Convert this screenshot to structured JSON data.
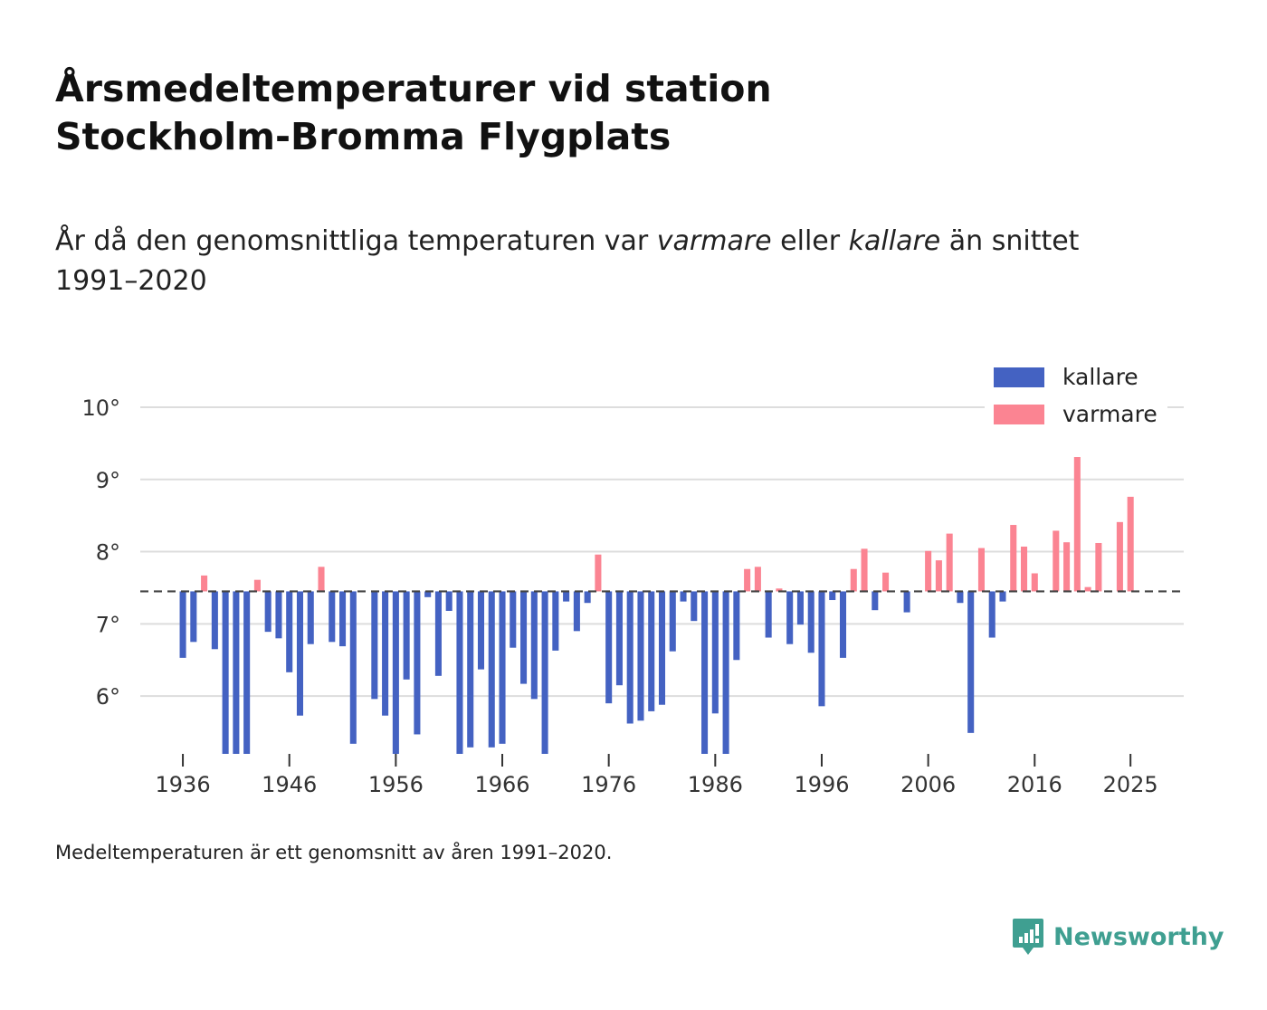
{
  "title": {
    "line1": "Årsmedeltemperaturer vid station",
    "line2": "Stockholm-Bromma Flygplats"
  },
  "subtitle": {
    "part1": "År då den genomsnittliga temperaturen var ",
    "warm_word": "varmare",
    "part2": " eller ",
    "cold_word": "kallare",
    "part3": " än snittet 1991–2020"
  },
  "footnote": "Medeltemperaturen är ett genomsnitt av åren 1991–2020.",
  "brand": {
    "name": "Newsworthy",
    "icon": "newsworthy-logo-icon"
  },
  "colors": {
    "cold": "#4462c2",
    "warm": "#fb8492",
    "gridline": "#dddddd",
    "reference": "#444444",
    "axis_text": "#333333",
    "brand": "#3f9f91"
  },
  "chart_data": {
    "type": "bar",
    "title": "Årsmedeltemperaturer vid station Stockholm-Bromma Flygplats",
    "baseline": 7.45,
    "baseline_label": "snittet 1991–2020",
    "ylim": [
      5.2,
      10.2
    ],
    "yticks": [
      6,
      7,
      8,
      9,
      10
    ],
    "ytick_labels": [
      "6°",
      "7°",
      "8°",
      "9°",
      "10°"
    ],
    "xlim": [
      1932,
      2030
    ],
    "xticks": [
      1936,
      1946,
      1956,
      1966,
      1976,
      1986,
      1996,
      2006,
      2016,
      2025
    ],
    "xtick_labels": [
      "1936",
      "1946",
      "1956",
      "1966",
      "1976",
      "1986",
      "1996",
      "2006",
      "2016",
      "2025"
    ],
    "legend": {
      "position": "top-right",
      "entries": [
        {
          "name": "kallare",
          "key": "cold"
        },
        {
          "name": "varmare",
          "key": "warm"
        }
      ]
    },
    "series": [
      {
        "x": 1936,
        "y": 6.53
      },
      {
        "x": 1937,
        "y": 6.75
      },
      {
        "x": 1938,
        "y": 7.67
      },
      {
        "x": 1939,
        "y": 6.65
      },
      {
        "x": 1940,
        "y": 5.2
      },
      {
        "x": 1941,
        "y": 5.2
      },
      {
        "x": 1942,
        "y": 5.2
      },
      {
        "x": 1943,
        "y": 7.61
      },
      {
        "x": 1944,
        "y": 6.89
      },
      {
        "x": 1945,
        "y": 6.8
      },
      {
        "x": 1946,
        "y": 6.33
      },
      {
        "x": 1947,
        "y": 5.73
      },
      {
        "x": 1948,
        "y": 6.72
      },
      {
        "x": 1949,
        "y": 7.79
      },
      {
        "x": 1950,
        "y": 6.75
      },
      {
        "x": 1951,
        "y": 6.69
      },
      {
        "x": 1952,
        "y": 5.34
      },
      {
        "x": 1954,
        "y": 5.96
      },
      {
        "x": 1955,
        "y": 5.73
      },
      {
        "x": 1956,
        "y": 5.2
      },
      {
        "x": 1957,
        "y": 6.23
      },
      {
        "x": 1958,
        "y": 5.47
      },
      {
        "x": 1959,
        "y": 7.37
      },
      {
        "x": 1960,
        "y": 6.28
      },
      {
        "x": 1961,
        "y": 7.18
      },
      {
        "x": 1962,
        "y": 5.2
      },
      {
        "x": 1963,
        "y": 5.29
      },
      {
        "x": 1964,
        "y": 6.37
      },
      {
        "x": 1965,
        "y": 5.29
      },
      {
        "x": 1966,
        "y": 5.34
      },
      {
        "x": 1967,
        "y": 6.67
      },
      {
        "x": 1968,
        "y": 6.17
      },
      {
        "x": 1969,
        "y": 5.96
      },
      {
        "x": 1970,
        "y": 5.2
      },
      {
        "x": 1971,
        "y": 6.63
      },
      {
        "x": 1972,
        "y": 7.31
      },
      {
        "x": 1973,
        "y": 6.9
      },
      {
        "x": 1974,
        "y": 7.29
      },
      {
        "x": 1975,
        "y": 7.96
      },
      {
        "x": 1976,
        "y": 5.9
      },
      {
        "x": 1977,
        "y": 6.15
      },
      {
        "x": 1978,
        "y": 5.62
      },
      {
        "x": 1979,
        "y": 5.66
      },
      {
        "x": 1980,
        "y": 5.79
      },
      {
        "x": 1981,
        "y": 5.88
      },
      {
        "x": 1982,
        "y": 6.62
      },
      {
        "x": 1983,
        "y": 7.31
      },
      {
        "x": 1984,
        "y": 7.04
      },
      {
        "x": 1985,
        "y": 5.2
      },
      {
        "x": 1986,
        "y": 5.76
      },
      {
        "x": 1987,
        "y": 5.2
      },
      {
        "x": 1988,
        "y": 6.5
      },
      {
        "x": 1989,
        "y": 7.76
      },
      {
        "x": 1990,
        "y": 7.79
      },
      {
        "x": 1991,
        "y": 6.81
      },
      {
        "x": 1992,
        "y": 7.49
      },
      {
        "x": 1993,
        "y": 6.72
      },
      {
        "x": 1994,
        "y": 6.99
      },
      {
        "x": 1995,
        "y": 6.6
      },
      {
        "x": 1996,
        "y": 5.86
      },
      {
        "x": 1997,
        "y": 7.33
      },
      {
        "x": 1998,
        "y": 6.53
      },
      {
        "x": 1999,
        "y": 7.76
      },
      {
        "x": 2000,
        "y": 8.04
      },
      {
        "x": 2001,
        "y": 7.19
      },
      {
        "x": 2002,
        "y": 7.71
      },
      {
        "x": 2004,
        "y": 7.16
      },
      {
        "x": 2006,
        "y": 8.01
      },
      {
        "x": 2007,
        "y": 7.88
      },
      {
        "x": 2008,
        "y": 8.25
      },
      {
        "x": 2009,
        "y": 7.29
      },
      {
        "x": 2010,
        "y": 5.49
      },
      {
        "x": 2011,
        "y": 8.05
      },
      {
        "x": 2012,
        "y": 6.81
      },
      {
        "x": 2013,
        "y": 7.31
      },
      {
        "x": 2014,
        "y": 8.37
      },
      {
        "x": 2015,
        "y": 8.07
      },
      {
        "x": 2016,
        "y": 7.7
      },
      {
        "x": 2018,
        "y": 8.29
      },
      {
        "x": 2019,
        "y": 8.13
      },
      {
        "x": 2020,
        "y": 9.31
      },
      {
        "x": 2021,
        "y": 7.51
      },
      {
        "x": 2022,
        "y": 8.12
      },
      {
        "x": 2024,
        "y": 8.41
      },
      {
        "x": 2025,
        "y": 8.76
      }
    ]
  }
}
